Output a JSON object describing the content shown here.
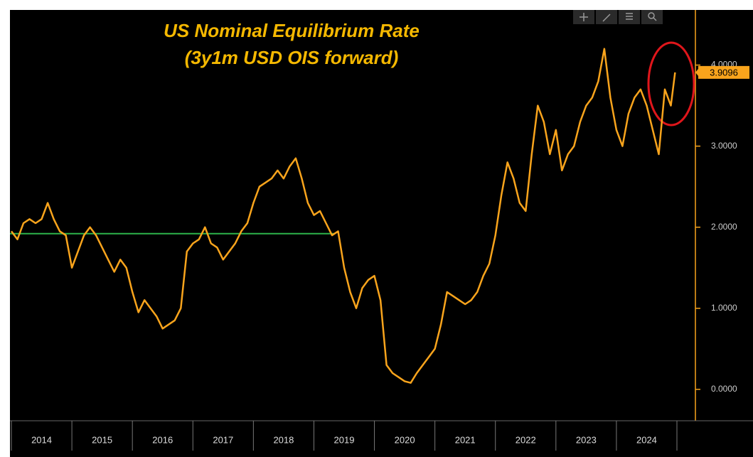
{
  "chart_data": {
    "type": "line",
    "title": [
      "US Nominal Equilibrium Rate",
      "(3y1m USD OIS forward)"
    ],
    "x": [
      2014.0,
      2014.1,
      2014.2,
      2014.3,
      2014.4,
      2014.5,
      2014.6,
      2014.7,
      2014.8,
      2014.9,
      2015.0,
      2015.1,
      2015.2,
      2015.3,
      2015.4,
      2015.5,
      2015.6,
      2015.7,
      2015.8,
      2015.9,
      2016.0,
      2016.1,
      2016.2,
      2016.3,
      2016.4,
      2016.5,
      2016.6,
      2016.7,
      2016.8,
      2016.9,
      2017.0,
      2017.1,
      2017.2,
      2017.3,
      2017.4,
      2017.5,
      2017.6,
      2017.7,
      2017.8,
      2017.9,
      2018.0,
      2018.1,
      2018.2,
      2018.3,
      2018.4,
      2018.5,
      2018.6,
      2018.7,
      2018.8,
      2018.9,
      2019.0,
      2019.1,
      2019.2,
      2019.3,
      2019.4,
      2019.5,
      2019.6,
      2019.7,
      2019.8,
      2019.9,
      2020.0,
      2020.1,
      2020.2,
      2020.3,
      2020.4,
      2020.5,
      2020.6,
      2020.7,
      2020.8,
      2020.9,
      2021.0,
      2021.1,
      2021.2,
      2021.3,
      2021.4,
      2021.5,
      2021.6,
      2021.7,
      2021.8,
      2021.9,
      2022.0,
      2022.1,
      2022.2,
      2022.3,
      2022.4,
      2022.5,
      2022.6,
      2022.7,
      2022.8,
      2022.9,
      2023.0,
      2023.1,
      2023.2,
      2023.3,
      2023.4,
      2023.5,
      2023.6,
      2023.7,
      2023.8,
      2023.9,
      2024.0,
      2024.1,
      2024.2,
      2024.3,
      2024.4,
      2024.5,
      2024.6,
      2024.7,
      2024.8,
      2024.9,
      2024.97
    ],
    "series": [
      {
        "color": "#f9a41c",
        "values": [
          1.95,
          1.85,
          2.05,
          2.1,
          2.05,
          2.1,
          2.3,
          2.1,
          1.95,
          1.9,
          1.5,
          1.7,
          1.9,
          2.0,
          1.9,
          1.75,
          1.6,
          1.45,
          1.6,
          1.5,
          1.2,
          0.95,
          1.1,
          1.0,
          0.9,
          0.75,
          0.8,
          0.85,
          1.0,
          1.7,
          1.8,
          1.85,
          2.0,
          1.8,
          1.75,
          1.6,
          1.7,
          1.8,
          1.95,
          2.05,
          2.3,
          2.5,
          2.55,
          2.6,
          2.7,
          2.6,
          2.75,
          2.85,
          2.6,
          2.3,
          2.15,
          2.2,
          2.05,
          1.9,
          1.95,
          1.5,
          1.2,
          1.0,
          1.25,
          1.35,
          1.4,
          1.1,
          0.3,
          0.2,
          0.15,
          0.1,
          0.08,
          0.2,
          0.3,
          0.4,
          0.5,
          0.8,
          1.2,
          1.15,
          1.1,
          1.05,
          1.1,
          1.2,
          1.4,
          1.55,
          1.9,
          2.4,
          2.8,
          2.6,
          2.3,
          2.2,
          2.9,
          3.5,
          3.3,
          2.9,
          3.2,
          2.7,
          2.9,
          3.0,
          3.3,
          3.5,
          3.6,
          3.8,
          4.2,
          3.6,
          3.2,
          3.0,
          3.4,
          3.6,
          3.7,
          3.5,
          3.2,
          2.9,
          3.7,
          3.5,
          3.9096
        ]
      }
    ],
    "xlim": [
      2014,
      2025
    ],
    "xticks": [
      2014,
      2015,
      2016,
      2017,
      2018,
      2019,
      2020,
      2021,
      2022,
      2023,
      2024,
      2025
    ],
    "x_labels": [
      "2014",
      "2015",
      "2016",
      "2017",
      "2018",
      "2019",
      "2020",
      "2021",
      "2022",
      "2023",
      "2024"
    ],
    "ylim": [
      -0.37,
      4.68
    ],
    "yticks": [
      {
        "value": 0,
        "label": "0.0000"
      },
      {
        "value": 1,
        "label": "1.0000"
      },
      {
        "value": 2,
        "label": "2.0000"
      },
      {
        "value": 3,
        "label": "3.0000"
      },
      {
        "value": 4,
        "label": "4.0000"
      }
    ],
    "reference_line": {
      "value": 1.92,
      "x_end": 2019.35,
      "color": "#2db34a"
    }
  }
}
